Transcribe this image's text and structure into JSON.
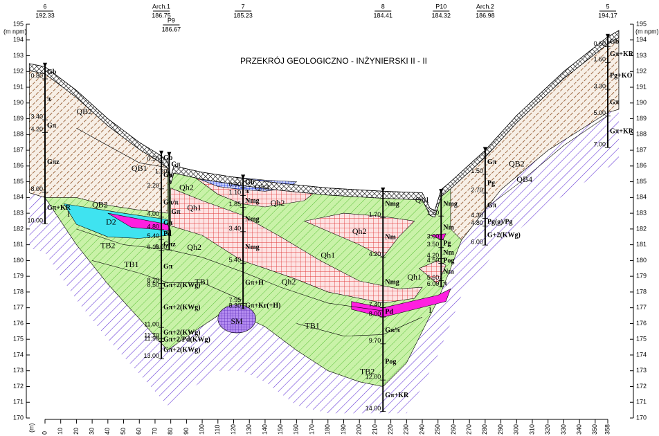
{
  "title": "PRZEKRÓJ GEOLOGICZNO - INŻYNIERSKI  II - II",
  "axes": {
    "y_unit": "(m npm)",
    "y_unit_right": "(m npm)",
    "ylim": [
      170,
      195
    ],
    "yticks": [
      170,
      171,
      172,
      173,
      174,
      175,
      176,
      177,
      178,
      179,
      180,
      181,
      182,
      183,
      184,
      185,
      186,
      187,
      188,
      189,
      190,
      191,
      192,
      193,
      194,
      195
    ],
    "x_unit": "(m)",
    "xlim": [
      0,
      358
    ],
    "xticks": [
      0,
      10,
      20,
      30,
      40,
      50,
      60,
      70,
      80,
      90,
      100,
      110,
      120,
      130,
      140,
      150,
      160,
      170,
      180,
      190,
      200,
      210,
      220,
      230,
      240,
      250,
      260,
      270,
      280,
      290,
      300,
      310,
      320,
      330,
      340,
      350,
      358
    ]
  },
  "boreholes": [
    {
      "name": "6",
      "elevation": "192.33",
      "depths": [
        "0.80",
        "3.40",
        "4.20",
        "8.00",
        "10.00"
      ],
      "soils": [
        "Gb",
        "π",
        "Gπ",
        "Gπz",
        "Gπ+KR"
      ]
    },
    {
      "name": "Arch.1",
      "elevation": "186.75",
      "depths": [
        "0.50",
        "2.20",
        "4.00",
        "4.80",
        "5.40",
        "6.10",
        "8.20",
        "8.50",
        "11.00",
        "11.70",
        "11.90",
        "13.00"
      ],
      "soils": [
        "Gb",
        "Gπ",
        "Gπ/π",
        "Gπ",
        "Pd",
        "Gπz",
        "Gπ",
        "Gπ+2(KWg)",
        "Gπ+2(KWg)",
        "Gπ+2(KWg)",
        "Gπ+2/Pd(KWg)",
        "Gπ+2(KWg)"
      ]
    },
    {
      "name": "P9",
      "elevation": "186.67",
      "depths": [
        "1.20",
        "6.00"
      ],
      "soils": [
        "Gπ",
        "Gπ"
      ]
    },
    {
      "name": "7",
      "elevation": "185.23",
      "depths": [
        "0.60",
        "1.10",
        "1.85",
        "3.40",
        "5.40",
        "7.95",
        "8.30"
      ],
      "soils": [
        "Gb",
        "π",
        "Nmg",
        "Nmg",
        "Nmg",
        "Gπ+H",
        "Gπ+Kr(+H)"
      ]
    },
    {
      "name": "8",
      "elevation": "184.41",
      "depths": [
        "1.70",
        "4.20",
        "7.40",
        "8.00",
        "9.70",
        "12.00",
        "14.00"
      ],
      "soils": [
        "Nmg",
        "Nm",
        "Nmg",
        "Pd",
        "Gπ/π",
        "Pog",
        "Gπ+KR"
      ]
    },
    {
      "name": "P10",
      "elevation": "184.32",
      "depths": [
        "1.50",
        "3.00",
        "3.50",
        "4.20",
        "4.50",
        "5.60",
        "6.00"
      ],
      "soils": [
        "Nmg",
        "Nm",
        "Pg",
        "Nm",
        "Pog",
        "Nm",
        "π"
      ]
    },
    {
      "name": "Arch.2",
      "elevation": "186.98",
      "depths": [
        "1.50",
        "2.70",
        "4.30",
        "4.80",
        "6.00"
      ],
      "soils": [
        "Gπ",
        "Pg",
        "Gπ",
        "Pg(g)/Pg",
        "G+2(KWg)"
      ]
    },
    {
      "name": "5",
      "elevation": "194.17",
      "depths": [
        "0.60",
        "1.60",
        "3.30",
        "5.00",
        "7.00"
      ],
      "soils": [
        "Gb",
        "Gπ+KR",
        "Pg+KO",
        "Gπ",
        "Gπ+KR"
      ]
    }
  ],
  "strata": [
    "QB2",
    "QB1",
    "QB2",
    "D2",
    "TB2",
    "TB1",
    "TB1",
    "Qh2",
    "Qh1",
    "Qh3",
    "Qh2",
    "Qh2",
    "Qh2",
    "Qh1",
    "Qh2",
    "Qh1",
    "Qh1",
    "TB1",
    "TB2",
    "QB2",
    "QB4",
    "I",
    "I",
    "SM"
  ]
}
